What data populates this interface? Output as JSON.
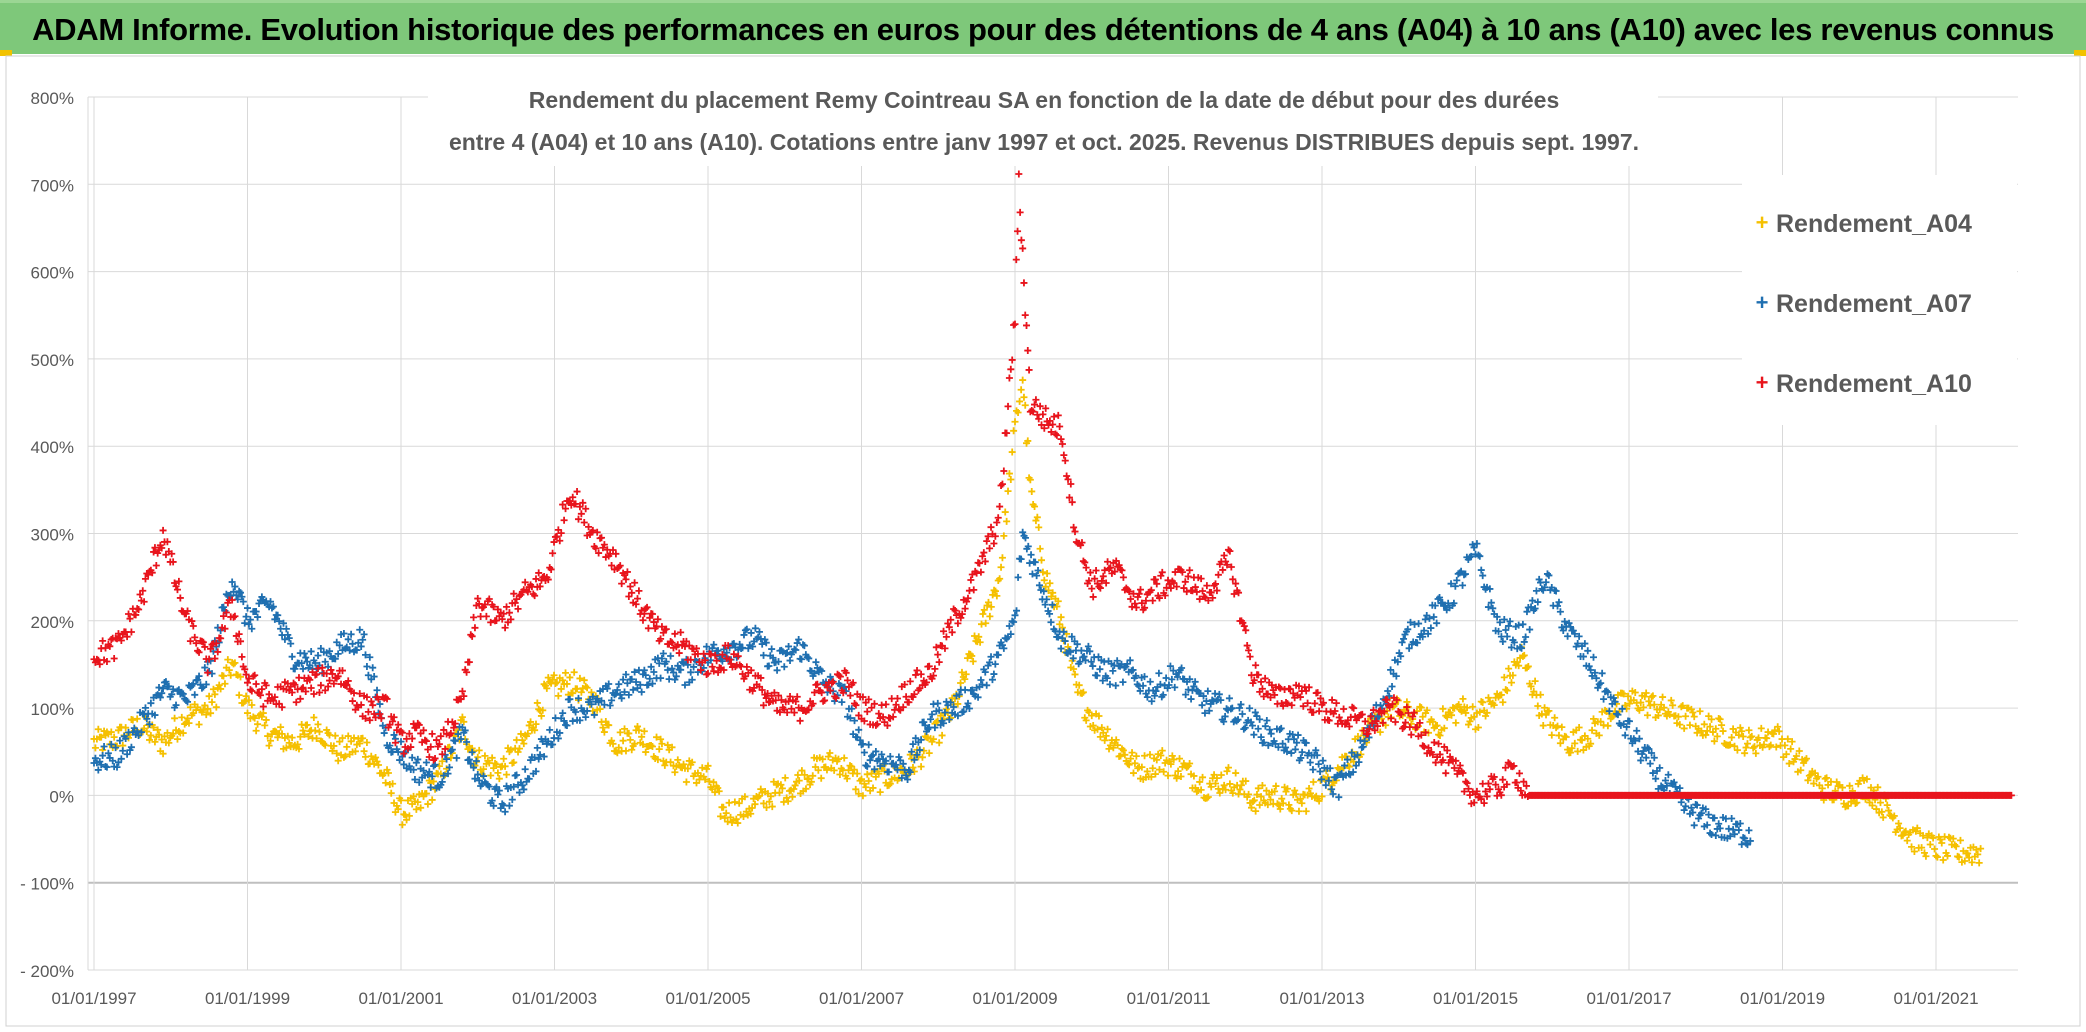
{
  "banner": {
    "title": "ADAM Informe. Evolution historique des performances en euros pour des détentions de 4 ans (A04) à 10 ans (A10) avec les revenus connus distribués"
  },
  "colors": {
    "banner_bg": "#7ec87a",
    "A04": "#f5c000",
    "A07": "#1f6fb0",
    "A10": "#e8141c",
    "grid": "#d9d9d9"
  },
  "chart_data": {
    "type": "scatter",
    "title_line1": "Rendement du placement Remy Cointreau SA en fonction de la date de début pour des durées",
    "title_line2": "entre 4 (A04) et 10 ans (A10). Cotations entre janv 1997 et oct. 2025. Revenus DISTRIBUES depuis sept. 1997.",
    "ylim": [
      -200,
      800
    ],
    "y_ticks": [
      "800%",
      "700%",
      "600%",
      "500%",
      "400%",
      "300%",
      "200%",
      "100%",
      "0%",
      "- 100%",
      "- 200%"
    ],
    "x_ticks": [
      "01/01/1997",
      "01/01/1999",
      "01/01/2001",
      "01/01/2003",
      "01/01/2005",
      "01/01/2007",
      "01/01/2009",
      "01/01/2011",
      "01/01/2013",
      "01/01/2015",
      "01/01/2017",
      "01/01/2019",
      "01/01/2021"
    ],
    "xlim": [
      1997.0,
      2022.0
    ],
    "marker": "+",
    "legend_position": "top-right",
    "series": [
      {
        "name": "Rendement_A04",
        "color": "#f5c000",
        "points": [
          [
            1997.0,
            60
          ],
          [
            1997.3,
            65
          ],
          [
            1997.6,
            80
          ],
          [
            1997.9,
            60
          ],
          [
            1998.2,
            90
          ],
          [
            1998.5,
            100
          ],
          [
            1998.8,
            150
          ],
          [
            1999.0,
            100
          ],
          [
            1999.3,
            70
          ],
          [
            1999.6,
            60
          ],
          [
            1999.9,
            80
          ],
          [
            2000.2,
            50
          ],
          [
            2000.5,
            60
          ],
          [
            2000.8,
            20
          ],
          [
            2001.0,
            -20
          ],
          [
            2001.2,
            -15
          ],
          [
            2001.5,
            20
          ],
          [
            2001.8,
            80
          ],
          [
            2002.0,
            40
          ],
          [
            2002.3,
            30
          ],
          [
            2002.6,
            60
          ],
          [
            2002.9,
            120
          ],
          [
            2003.2,
            130
          ],
          [
            2003.5,
            110
          ],
          [
            2003.8,
            60
          ],
          [
            2004.1,
            70
          ],
          [
            2004.4,
            50
          ],
          [
            2004.7,
            30
          ],
          [
            2005.0,
            20
          ],
          [
            2005.2,
            -20
          ],
          [
            2005.5,
            -15
          ],
          [
            2005.8,
            0
          ],
          [
            2006.1,
            10
          ],
          [
            2006.4,
            30
          ],
          [
            2006.7,
            40
          ],
          [
            2007.0,
            10
          ],
          [
            2007.3,
            20
          ],
          [
            2007.6,
            30
          ],
          [
            2007.9,
            60
          ],
          [
            2008.2,
            100
          ],
          [
            2008.4,
            150
          ],
          [
            2008.6,
            200
          ],
          [
            2008.8,
            250
          ],
          [
            2009.0,
            420
          ],
          [
            2009.1,
            480
          ],
          [
            2009.2,
            350
          ],
          [
            2009.4,
            250
          ],
          [
            2009.6,
            200
          ],
          [
            2009.8,
            120
          ],
          [
            2010.0,
            90
          ],
          [
            2010.3,
            60
          ],
          [
            2010.6,
            30
          ],
          [
            2010.9,
            40
          ],
          [
            2011.2,
            30
          ],
          [
            2011.5,
            10
          ],
          [
            2011.8,
            20
          ],
          [
            2012.1,
            -5
          ],
          [
            2012.4,
            0
          ],
          [
            2012.7,
            -10
          ],
          [
            2013.0,
            10
          ],
          [
            2013.3,
            40
          ],
          [
            2013.6,
            70
          ],
          [
            2013.9,
            100
          ],
          [
            2014.2,
            90
          ],
          [
            2014.5,
            80
          ],
          [
            2014.8,
            100
          ],
          [
            2015.0,
            90
          ],
          [
            2015.3,
            110
          ],
          [
            2015.6,
            160
          ],
          [
            2015.9,
            90
          ],
          [
            2016.2,
            60
          ],
          [
            2016.5,
            70
          ],
          [
            2016.8,
            100
          ],
          [
            2017.1,
            110
          ],
          [
            2017.4,
            100
          ],
          [
            2017.7,
            90
          ],
          [
            2018.0,
            80
          ],
          [
            2018.3,
            70
          ],
          [
            2018.6,
            60
          ],
          [
            2018.9,
            70
          ],
          [
            2019.2,
            40
          ],
          [
            2019.5,
            10
          ],
          [
            2019.8,
            0
          ],
          [
            2020.1,
            10
          ],
          [
            2020.4,
            -20
          ],
          [
            2020.7,
            -50
          ],
          [
            2021.0,
            -60
          ],
          [
            2021.3,
            -65
          ],
          [
            2021.6,
            -65
          ]
        ]
      },
      {
        "name": "Rendement_A07",
        "color": "#1f6fb0",
        "points": [
          [
            1997.0,
            40
          ],
          [
            1997.3,
            45
          ],
          [
            1997.6,
            80
          ],
          [
            1997.9,
            120
          ],
          [
            1998.2,
            110
          ],
          [
            1998.5,
            140
          ],
          [
            1998.8,
            250
          ],
          [
            1999.0,
            200
          ],
          [
            1999.3,
            220
          ],
          [
            1999.6,
            160
          ],
          [
            1999.9,
            150
          ],
          [
            2000.2,
            170
          ],
          [
            2000.5,
            180
          ],
          [
            2000.8,
            70
          ],
          [
            2001.0,
            50
          ],
          [
            2001.2,
            30
          ],
          [
            2001.5,
            20
          ],
          [
            2001.8,
            70
          ],
          [
            2002.0,
            20
          ],
          [
            2002.3,
            -10
          ],
          [
            2002.6,
            20
          ],
          [
            2002.9,
            60
          ],
          [
            2003.2,
            100
          ],
          [
            2003.5,
            100
          ],
          [
            2003.8,
            120
          ],
          [
            2004.1,
            130
          ],
          [
            2004.4,
            150
          ],
          [
            2004.7,
            140
          ],
          [
            2005.0,
            160
          ],
          [
            2005.3,
            170
          ],
          [
            2005.6,
            180
          ],
          [
            2005.9,
            150
          ],
          [
            2006.2,
            170
          ],
          [
            2006.5,
            130
          ],
          [
            2006.8,
            110
          ],
          [
            2007.0,
            50
          ],
          [
            2007.3,
            40
          ],
          [
            2007.6,
            30
          ],
          [
            2007.9,
            90
          ],
          [
            2008.2,
            100
          ],
          [
            2008.5,
            120
          ],
          [
            2008.8,
            160
          ],
          [
            2009.0,
            200
          ],
          [
            2009.1,
            300
          ],
          [
            2009.3,
            250
          ],
          [
            2009.6,
            180
          ],
          [
            2009.9,
            160
          ],
          [
            2010.2,
            140
          ],
          [
            2010.5,
            140
          ],
          [
            2010.8,
            120
          ],
          [
            2011.1,
            140
          ],
          [
            2011.4,
            110
          ],
          [
            2011.7,
            100
          ],
          [
            2012.0,
            90
          ],
          [
            2012.3,
            70
          ],
          [
            2012.6,
            60
          ],
          [
            2012.9,
            40
          ],
          [
            2013.2,
            10
          ],
          [
            2013.5,
            50
          ],
          [
            2013.8,
            110
          ],
          [
            2014.1,
            180
          ],
          [
            2014.4,
            200
          ],
          [
            2014.7,
            230
          ],
          [
            2015.0,
            280
          ],
          [
            2015.3,
            190
          ],
          [
            2015.6,
            180
          ],
          [
            2015.9,
            250
          ],
          [
            2016.2,
            190
          ],
          [
            2016.5,
            150
          ],
          [
            2016.8,
            100
          ],
          [
            2017.1,
            60
          ],
          [
            2017.4,
            20
          ],
          [
            2017.7,
            -10
          ],
          [
            2018.0,
            -30
          ],
          [
            2018.3,
            -40
          ],
          [
            2018.6,
            -45
          ]
        ]
      },
      {
        "name": "Rendement_A10",
        "color": "#e8141c",
        "points": [
          [
            1997.0,
            160
          ],
          [
            1997.3,
            170
          ],
          [
            1997.6,
            220
          ],
          [
            1997.9,
            300
          ],
          [
            1998.2,
            200
          ],
          [
            1998.5,
            150
          ],
          [
            1998.8,
            220
          ],
          [
            1999.0,
            130
          ],
          [
            1999.3,
            110
          ],
          [
            1999.6,
            120
          ],
          [
            1999.9,
            130
          ],
          [
            2000.2,
            140
          ],
          [
            2000.5,
            100
          ],
          [
            2000.8,
            100
          ],
          [
            2001.0,
            60
          ],
          [
            2001.2,
            70
          ],
          [
            2001.5,
            50
          ],
          [
            2001.8,
            110
          ],
          [
            2002.0,
            220
          ],
          [
            2002.3,
            200
          ],
          [
            2002.6,
            230
          ],
          [
            2002.9,
            250
          ],
          [
            2003.2,
            350
          ],
          [
            2003.5,
            300
          ],
          [
            2003.8,
            270
          ],
          [
            2004.1,
            220
          ],
          [
            2004.4,
            180
          ],
          [
            2004.7,
            170
          ],
          [
            2005.0,
            150
          ],
          [
            2005.3,
            160
          ],
          [
            2005.6,
            130
          ],
          [
            2005.9,
            100
          ],
          [
            2006.2,
            100
          ],
          [
            2006.5,
            120
          ],
          [
            2006.8,
            130
          ],
          [
            2007.0,
            100
          ],
          [
            2007.3,
            90
          ],
          [
            2007.6,
            120
          ],
          [
            2007.9,
            140
          ],
          [
            2008.2,
            200
          ],
          [
            2008.5,
            250
          ],
          [
            2008.8,
            320
          ],
          [
            2009.0,
            550
          ],
          [
            2009.05,
            700
          ],
          [
            2009.1,
            620
          ],
          [
            2009.2,
            450
          ],
          [
            2009.4,
            430
          ],
          [
            2009.6,
            420
          ],
          [
            2009.8,
            300
          ],
          [
            2010.0,
            240
          ],
          [
            2010.3,
            260
          ],
          [
            2010.6,
            220
          ],
          [
            2010.9,
            240
          ],
          [
            2011.2,
            250
          ],
          [
            2011.5,
            230
          ],
          [
            2011.8,
            270
          ],
          [
            2012.1,
            140
          ],
          [
            2012.4,
            110
          ],
          [
            2012.7,
            120
          ],
          [
            2013.0,
            100
          ],
          [
            2013.3,
            90
          ],
          [
            2013.6,
            80
          ],
          [
            2013.9,
            100
          ],
          [
            2014.2,
            80
          ],
          [
            2014.5,
            50
          ],
          [
            2014.8,
            20
          ],
          [
            2015.0,
            0
          ],
          [
            2015.3,
            10
          ],
          [
            2015.5,
            30
          ],
          [
            2015.7,
            0
          ],
          [
            2016.0,
            0
          ],
          [
            2016.5,
            0
          ],
          [
            2017.0,
            0
          ],
          [
            2017.5,
            0
          ],
          [
            2018.0,
            0
          ],
          [
            2018.5,
            0
          ],
          [
            2019.0,
            0
          ],
          [
            2019.5,
            0
          ],
          [
            2020.0,
            0
          ],
          [
            2020.5,
            0
          ],
          [
            2021.0,
            0
          ],
          [
            2021.5,
            0
          ],
          [
            2022.0,
            0
          ]
        ]
      }
    ]
  }
}
